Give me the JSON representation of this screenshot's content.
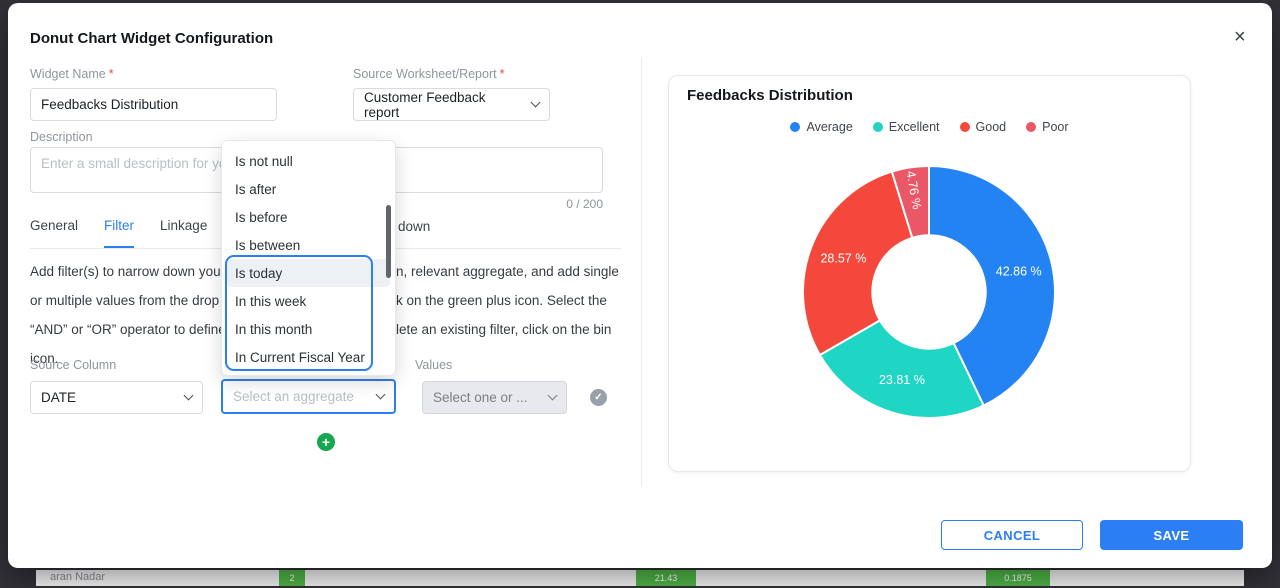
{
  "modal": {
    "title": "Donut Chart Widget Configuration"
  },
  "icons": {
    "close": "×",
    "check": "✓",
    "plus": "+"
  },
  "form": {
    "widget_name": {
      "label": "Widget Name",
      "required": "*",
      "value": "Feedbacks Distribution"
    },
    "source": {
      "label": "Source Worksheet/Report",
      "required": "*",
      "value": "Customer Feedback report"
    },
    "description": {
      "label": "Description",
      "placeholder": "Enter a small description for yo",
      "counter": "0 / 200"
    },
    "tabs": [
      {
        "label": "General",
        "active": false
      },
      {
        "label": "Filter",
        "active": true
      },
      {
        "label": "Linkage",
        "active": false
      }
    ],
    "hidden_tab_fragment": "down",
    "help_lines": [
      {
        "left": "Add filter(s) to narrow down you",
        "right": "n, relevant aggregate, and add single"
      },
      {
        "left": "or multiple values from the drop",
        "right": "k on the green plus icon. Select the"
      },
      {
        "left": "“AND” or “OR” operator to define",
        "right": "lete an existing filter, click on the bin"
      },
      {
        "left": "icon.",
        "right": ""
      }
    ],
    "source_column": {
      "label": "Source Column",
      "value": "DATE"
    },
    "aggregate": {
      "placeholder": "Select an aggregate"
    },
    "values": {
      "label": "Values",
      "placeholder": "Select one or ..."
    }
  },
  "dropdown": {
    "items": [
      "Is not null",
      "Is after",
      "Is before",
      "Is between",
      "Is today",
      "In this week",
      "In this month",
      "In Current Fiscal Year"
    ],
    "highlighted": "Is today"
  },
  "preview": {
    "title": "Feedbacks Distribution"
  },
  "chart_data": {
    "type": "pie",
    "subtype": "donut",
    "title": "Feedbacks Distribution",
    "labels": [
      "Average",
      "Excellent",
      "Good",
      "Poor"
    ],
    "values": [
      42.86,
      23.81,
      28.57,
      4.76
    ],
    "value_labels": [
      "42.86 %",
      "23.81 %",
      "28.57 %",
      "4.76 %"
    ],
    "colors": [
      "#2383f2",
      "#1fd5c3",
      "#f4483c",
      "#ea5767"
    ],
    "legend_position": "top",
    "start_angle_deg": 0,
    "direction": "clockwise",
    "inner_radius_ratio": 0.45
  },
  "footer": {
    "cancel": "CANCEL",
    "save": "SAVE"
  },
  "background_row": {
    "name_fragment": "aran Nadar",
    "cells": [
      "2",
      "21.43",
      "0.1875"
    ],
    "cell_color": "#50b748"
  }
}
